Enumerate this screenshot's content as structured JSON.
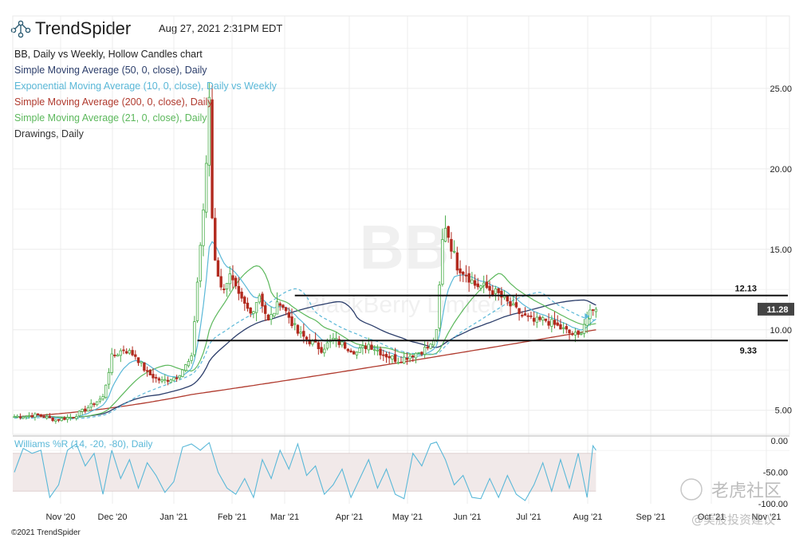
{
  "header": {
    "brand": "TrendSpider",
    "timestamp": "Aug 27, 2021 2:31PM EDT"
  },
  "legend": {
    "items": [
      {
        "label": "BB, Daily vs Weekly, Hollow Candles chart",
        "color": "#222222"
      },
      {
        "label": "Simple Moving Average (50, 0, close), Daily",
        "color": "#2c3e6b"
      },
      {
        "label": "Exponential Moving Average (10, 0, close), Daily vs Weekly",
        "color": "#5ab8d8"
      },
      {
        "label": "Simple Moving Average (200, 0, close), Daily",
        "color": "#b03a2e"
      },
      {
        "label": "Simple Moving Average (21, 0, close), Daily",
        "color": "#5cb85c"
      },
      {
        "label": "Drawings, Daily",
        "color": "#333333"
      }
    ]
  },
  "watermark": {
    "symbol": "BB",
    "name": "BlackBerry Limited"
  },
  "price_tag": "11.28",
  "oscillator": {
    "label": "Williams %R (14, -20, -80), Daily"
  },
  "footer": {
    "copyright": "©2021 TrendSpider",
    "cn_watermark_1": "老虎社区",
    "cn_watermark_2": "@美股投资建议"
  },
  "colors": {
    "up": "#4cae4c",
    "down": "#b22a1f",
    "sma50": "#2c3e6b",
    "ema10": "#5ab8d8",
    "sma200": "#b03a2e",
    "sma21": "#5cb85c",
    "willr": "#5ab8d8"
  },
  "chart_data": {
    "type": "candlestick",
    "symbol": "BB",
    "y_ticks": [
      "25.00",
      "20.00",
      "15.00",
      "10.00",
      "5.00"
    ],
    "y_tick_values": [
      25,
      20,
      15,
      10,
      5
    ],
    "x_ticks": [
      "Nov '20",
      "Dec '20",
      "Jan '21",
      "Feb '21",
      "Mar '21",
      "Apr '21",
      "May '21",
      "Jun '21",
      "Jul '21",
      "Aug '21",
      "Sep '21",
      "Oct '21",
      "Nov '21"
    ],
    "ylim": [
      3.5,
      29.5
    ],
    "levels": [
      {
        "label": "12.13",
        "value": 12.13
      },
      {
        "label": "9.33",
        "value": 9.33
      }
    ],
    "last_price": 11.28,
    "price_path": [
      [
        0,
        4.6
      ],
      [
        8,
        4.7
      ],
      [
        14,
        4.4
      ],
      [
        20,
        4.6
      ],
      [
        26,
        5.3
      ],
      [
        30,
        5.8
      ],
      [
        33,
        8.3
      ],
      [
        37,
        8.8
      ],
      [
        41,
        8.4
      ],
      [
        45,
        7.3
      ],
      [
        50,
        6.8
      ],
      [
        55,
        7.1
      ],
      [
        60,
        8.2
      ],
      [
        62,
        13.0
      ],
      [
        64,
        17.5
      ],
      [
        65,
        20.0
      ],
      [
        66,
        24.5
      ],
      [
        67,
        17.0
      ],
      [
        68,
        14.5
      ],
      [
        70,
        12.5
      ],
      [
        73,
        13.3
      ],
      [
        76,
        12.0
      ],
      [
        80,
        11.0
      ],
      [
        83,
        12.2
      ],
      [
        86,
        10.5
      ],
      [
        90,
        11.8
      ],
      [
        93,
        10.8
      ],
      [
        96,
        9.8
      ],
      [
        100,
        9.3
      ],
      [
        104,
        8.8
      ],
      [
        108,
        9.4
      ],
      [
        112,
        9.0
      ],
      [
        116,
        8.6
      ],
      [
        120,
        9.1
      ],
      [
        125,
        8.5
      ],
      [
        130,
        8.1
      ],
      [
        134,
        8.4
      ],
      [
        138,
        8.7
      ],
      [
        141,
        9.0
      ],
      [
        143,
        9.8
      ],
      [
        145,
        15.5
      ],
      [
        146,
        16.5
      ],
      [
        148,
        15.2
      ],
      [
        150,
        14.0
      ],
      [
        153,
        13.5
      ],
      [
        156,
        12.8
      ],
      [
        160,
        12.6
      ],
      [
        164,
        12.2
      ],
      [
        168,
        11.5
      ],
      [
        172,
        10.9
      ],
      [
        176,
        10.5
      ],
      [
        180,
        10.6
      ],
      [
        184,
        10.2
      ],
      [
        188,
        9.8
      ],
      [
        191,
        9.6
      ],
      [
        194,
        10.8
      ],
      [
        197,
        11.28
      ]
    ],
    "willr_path": [
      [
        0,
        -50
      ],
      [
        3,
        -12
      ],
      [
        6,
        -20
      ],
      [
        9,
        -15
      ],
      [
        12,
        -90
      ],
      [
        15,
        -70
      ],
      [
        18,
        -15
      ],
      [
        21,
        -5
      ],
      [
        24,
        -40
      ],
      [
        27,
        -20
      ],
      [
        30,
        -85
      ],
      [
        33,
        -15
      ],
      [
        36,
        -60
      ],
      [
        39,
        -30
      ],
      [
        42,
        -75
      ],
      [
        45,
        -35
      ],
      [
        48,
        -55
      ],
      [
        51,
        -82
      ],
      [
        54,
        -65
      ],
      [
        57,
        -10
      ],
      [
        60,
        -5
      ],
      [
        63,
        -15
      ],
      [
        66,
        -3
      ],
      [
        69,
        -50
      ],
      [
        72,
        -75
      ],
      [
        75,
        -85
      ],
      [
        78,
        -60
      ],
      [
        81,
        -90
      ],
      [
        84,
        -30
      ],
      [
        87,
        -60
      ],
      [
        90,
        -15
      ],
      [
        93,
        -45
      ],
      [
        96,
        -5
      ],
      [
        99,
        -55
      ],
      [
        102,
        -40
      ],
      [
        105,
        -85
      ],
      [
        108,
        -70
      ],
      [
        111,
        -45
      ],
      [
        114,
        -90
      ],
      [
        117,
        -60
      ],
      [
        120,
        -30
      ],
      [
        123,
        -75
      ],
      [
        126,
        -45
      ],
      [
        129,
        -85
      ],
      [
        132,
        -92
      ],
      [
        135,
        -20
      ],
      [
        138,
        -40
      ],
      [
        141,
        -5
      ],
      [
        143,
        -2
      ],
      [
        146,
        -30
      ],
      [
        149,
        -70
      ],
      [
        152,
        -55
      ],
      [
        155,
        -90
      ],
      [
        158,
        -92
      ],
      [
        161,
        -60
      ],
      [
        164,
        -90
      ],
      [
        167,
        -55
      ],
      [
        170,
        -85
      ],
      [
        173,
        -95
      ],
      [
        176,
        -70
      ],
      [
        179,
        -35
      ],
      [
        182,
        -80
      ],
      [
        185,
        -30
      ],
      [
        188,
        -75
      ],
      [
        191,
        -20
      ],
      [
        194,
        -90
      ],
      [
        196,
        -8
      ],
      [
        197,
        -15
      ]
    ],
    "willr_ticks": [
      "0.00",
      "-50.00",
      "-100.00"
    ],
    "willr_tick_values": [
      0,
      -50,
      -100
    ],
    "willr_band": [
      -20,
      -80
    ]
  }
}
